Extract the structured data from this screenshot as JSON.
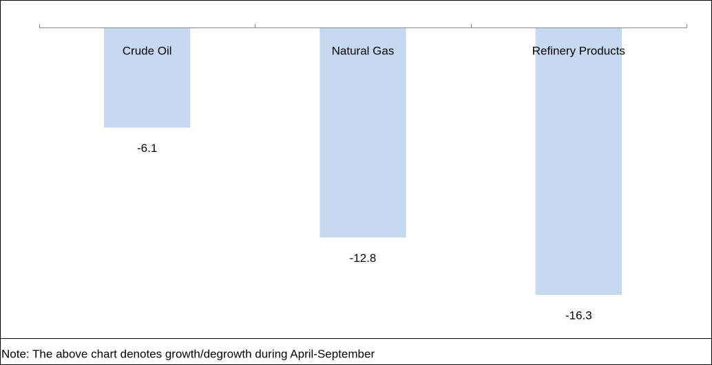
{
  "chart_data": {
    "type": "bar",
    "categories": [
      "Crude Oil",
      "Natural Gas",
      "Refinery Products"
    ],
    "values": [
      -6.1,
      -12.8,
      -16.3
    ],
    "color": "#c6d9f1",
    "note": "Note: The above chart denotes growth/degrowth during April-September"
  }
}
